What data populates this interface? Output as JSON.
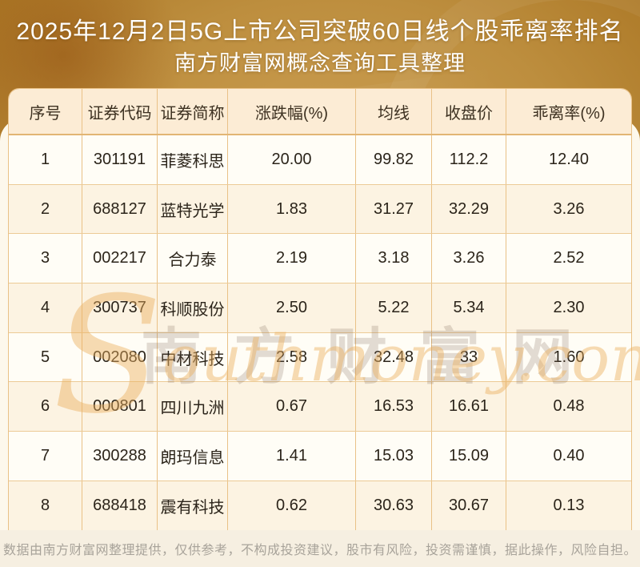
{
  "page": {
    "title_line1": "2025年12月2日5G上市公司突破60日线个股乖离率排名",
    "title_line2": "南方财富网概念查询工具整理"
  },
  "table": {
    "headers": [
      "序号",
      "证券代码",
      "证券简称",
      "涨跌幅(%)",
      "均线",
      "收盘价",
      "乖离率(%)"
    ],
    "rows": [
      [
        "1",
        "301191",
        "菲菱科思",
        "20.00",
        "99.82",
        "112.2",
        "12.40"
      ],
      [
        "2",
        "688127",
        "蓝特光学",
        "1.83",
        "31.27",
        "32.29",
        "3.26"
      ],
      [
        "3",
        "002217",
        "合力泰",
        "2.19",
        "3.18",
        "3.26",
        "2.52"
      ],
      [
        "4",
        "300737",
        "科顺股份",
        "2.50",
        "5.22",
        "5.34",
        "2.30"
      ],
      [
        "5",
        "002080",
        "中材科技",
        "2.58",
        "32.48",
        "33",
        "1.60"
      ],
      [
        "6",
        "000801",
        "四川九洲",
        "0.67",
        "16.53",
        "16.61",
        "0.48"
      ],
      [
        "7",
        "300288",
        "朗玛信息",
        "1.41",
        "15.03",
        "15.09",
        "0.40"
      ],
      [
        "8",
        "688418",
        "震有科技",
        "0.62",
        "30.63",
        "30.67",
        "0.13"
      ]
    ]
  },
  "watermark": {
    "cn": "南方财富网",
    "en_initial": "S",
    "en_rest": "outhmoney.com"
  },
  "footer": {
    "disclaimer": "数据由南方财富网整理提供，仅供参考，不构成投资建议，股市有风险，投资需谨慎，据此操作，风险自担。"
  },
  "colors": {
    "background_gold": "#b08030",
    "card_cream": "#fdf8ec",
    "header_peach": "#fcecd5",
    "row_alt_cream": "#fcf3e2",
    "border_tan": "#e9c187",
    "title_white": "#ffffff",
    "text_dark": "#2b241a",
    "footer_gray": "#a8a39a"
  },
  "chart_data": {
    "type": "table",
    "title": "2025年12月2日5G上市公司突破60日线个股乖离率排名",
    "subtitle": "南方财富网概念查询工具整理",
    "columns": [
      "序号",
      "证券代码",
      "证券简称",
      "涨跌幅(%)",
      "均线",
      "收盘价",
      "乖离率(%)"
    ],
    "rows": [
      [
        1,
        "301191",
        "菲菱科思",
        20.0,
        99.82,
        112.2,
        12.4
      ],
      [
        2,
        "688127",
        "蓝特光学",
        1.83,
        31.27,
        32.29,
        3.26
      ],
      [
        3,
        "002217",
        "合力泰",
        2.19,
        3.18,
        3.26,
        2.52
      ],
      [
        4,
        "300737",
        "科顺股份",
        2.5,
        5.22,
        5.34,
        2.3
      ],
      [
        5,
        "002080",
        "中材科技",
        2.58,
        32.48,
        33,
        1.6
      ],
      [
        6,
        "000801",
        "四川九洲",
        0.67,
        16.53,
        16.61,
        0.48
      ],
      [
        7,
        "300288",
        "朗玛信息",
        1.41,
        15.03,
        15.09,
        0.4
      ],
      [
        8,
        "688418",
        "震有科技",
        0.62,
        30.63,
        30.67,
        0.13
      ]
    ]
  }
}
